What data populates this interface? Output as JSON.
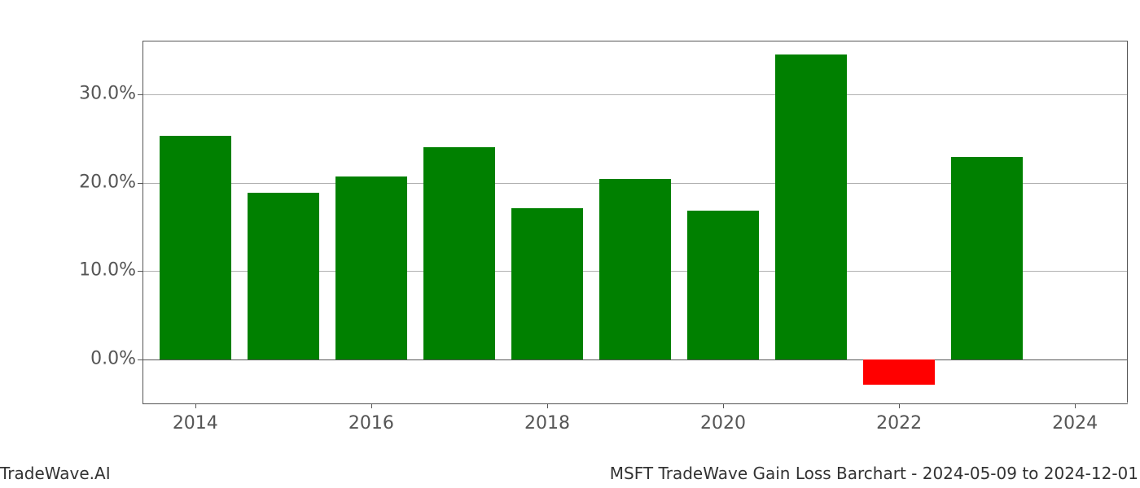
{
  "chart": {
    "type": "bar",
    "years": [
      2014,
      2015,
      2016,
      2017,
      2018,
      2019,
      2020,
      2021,
      2022,
      2023
    ],
    "values": [
      25.3,
      18.9,
      20.7,
      24.0,
      17.1,
      20.4,
      16.8,
      34.5,
      -2.9,
      22.9
    ],
    "positive_color": "#008000",
    "negative_color": "#ff0000",
    "background_color": "#ffffff",
    "grid_color": "#b0b0b0",
    "axis_color": "#555555",
    "ymin": -5,
    "ymax": 36,
    "ytick_start": 0,
    "ytick_step": 10,
    "yticks": [
      0,
      10,
      20,
      30
    ],
    "ytick_labels": [
      "0.0%",
      "10.0%",
      "20.0%",
      "30.0%"
    ],
    "xmin": 2013.4,
    "xmax": 2024.6,
    "xticks": [
      2014,
      2016,
      2018,
      2020,
      2022,
      2024
    ],
    "xtick_labels": [
      "2014",
      "2016",
      "2018",
      "2020",
      "2022",
      "2024"
    ],
    "bar_width_years": 0.82,
    "tick_label_fontsize": 22,
    "tick_label_color": "#555555",
    "footer_fontsize": 20
  },
  "footer": {
    "left": "TradeWave.AI",
    "right": "MSFT TradeWave Gain Loss Barchart - 2024-05-09 to 2024-12-01"
  }
}
